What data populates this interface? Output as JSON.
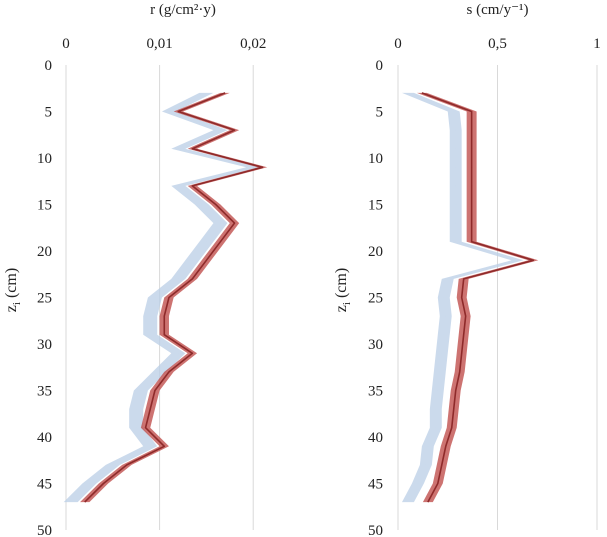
{
  "chart_data": [
    {
      "type": "line",
      "title": "r (g/cm²·y)",
      "ylabel": "z",
      "ylabel_sub": "i",
      "ylabel_unit": " (cm)",
      "xlim": [
        0,
        0.025
      ],
      "ylim": [
        0,
        50
      ],
      "y_inverted": true,
      "x_axis_position": "top",
      "x_ticks": [
        0,
        0.01,
        0.02
      ],
      "x_tick_labels": [
        "0",
        "0,01",
        "0,02"
      ],
      "y_ticks": [
        0,
        5,
        10,
        15,
        20,
        25,
        30,
        35,
        40,
        45,
        50
      ],
      "y_tick_labels": [
        "0",
        "5",
        "10",
        "15",
        "20",
        "25",
        "30",
        "35",
        "40",
        "45",
        "50"
      ],
      "grid": "vertical",
      "series": [
        {
          "color": "#b9cde6",
          "style": "band",
          "width": 0.0015,
          "points": [
            [
              0.015,
              3
            ],
            [
              0.011,
              5
            ],
            [
              0.0165,
              7
            ],
            [
              0.012,
              9
            ],
            [
              0.02,
              11
            ],
            [
              0.012,
              13
            ],
            [
              0.0145,
              15
            ],
            [
              0.0165,
              17
            ],
            [
              0.015,
              19
            ],
            [
              0.0135,
              21
            ],
            [
              0.012,
              23
            ],
            [
              0.0095,
              25
            ],
            [
              0.009,
              27
            ],
            [
              0.009,
              29
            ],
            [
              0.012,
              31
            ],
            [
              0.01,
              33
            ],
            [
              0.008,
              35
            ],
            [
              0.0075,
              37
            ],
            [
              0.0075,
              39
            ],
            [
              0.009,
              41
            ],
            [
              0.005,
              43
            ],
            [
              0.0025,
              45
            ],
            [
              0.0005,
              47
            ]
          ]
        },
        {
          "color": "#c0504d",
          "style": "band-line",
          "width": 0.001,
          "points": [
            [
              0.017,
              3
            ],
            [
              0.012,
              5
            ],
            [
              0.018,
              7
            ],
            [
              0.0135,
              9
            ],
            [
              0.021,
              11
            ],
            [
              0.0135,
              13
            ],
            [
              0.016,
              15
            ],
            [
              0.018,
              17
            ],
            [
              0.0165,
              19
            ],
            [
              0.015,
              21
            ],
            [
              0.0135,
              23
            ],
            [
              0.011,
              25
            ],
            [
              0.0105,
              27
            ],
            [
              0.0105,
              29
            ],
            [
              0.0135,
              31
            ],
            [
              0.011,
              33
            ],
            [
              0.0095,
              35
            ],
            [
              0.009,
              37
            ],
            [
              0.0085,
              39
            ],
            [
              0.0105,
              41
            ],
            [
              0.0065,
              43
            ],
            [
              0.004,
              45
            ],
            [
              0.002,
              47
            ]
          ]
        }
      ]
    },
    {
      "type": "line",
      "title": "s (cm/y⁻¹)",
      "ylabel": "z",
      "ylabel_sub": "i",
      "ylabel_unit": " (cm)",
      "xlim": [
        0,
        1
      ],
      "ylim": [
        0,
        50
      ],
      "y_inverted": true,
      "x_axis_position": "top",
      "x_ticks": [
        0,
        0.5,
        1
      ],
      "x_tick_labels": [
        "0",
        "0,5",
        "1"
      ],
      "y_ticks": [
        0,
        5,
        10,
        15,
        20,
        25,
        30,
        35,
        40,
        45,
        50
      ],
      "y_tick_labels": [
        "0",
        "5",
        "10",
        "15",
        "20",
        "25",
        "30",
        "35",
        "40",
        "45",
        "50"
      ],
      "grid": "vertical",
      "series": [
        {
          "color": "#b9cde6",
          "style": "band",
          "width": 0.06,
          "points": [
            [
              0.05,
              3
            ],
            [
              0.28,
              5
            ],
            [
              0.29,
              7
            ],
            [
              0.29,
              9
            ],
            [
              0.29,
              11
            ],
            [
              0.29,
              13
            ],
            [
              0.29,
              15
            ],
            [
              0.29,
              17
            ],
            [
              0.29,
              19
            ],
            [
              0.6,
              21
            ],
            [
              0.25,
              23
            ],
            [
              0.23,
              25
            ],
            [
              0.24,
              27
            ],
            [
              0.23,
              29
            ],
            [
              0.22,
              31
            ],
            [
              0.21,
              33
            ],
            [
              0.2,
              35
            ],
            [
              0.19,
              37
            ],
            [
              0.19,
              39
            ],
            [
              0.15,
              41
            ],
            [
              0.14,
              43
            ],
            [
              0.1,
              45
            ],
            [
              0.05,
              47
            ]
          ]
        },
        {
          "color": "#c0504d",
          "style": "band-line",
          "width": 0.05,
          "points": [
            [
              0.12,
              3
            ],
            [
              0.37,
              5
            ],
            [
              0.37,
              7
            ],
            [
              0.37,
              9
            ],
            [
              0.37,
              11
            ],
            [
              0.37,
              13
            ],
            [
              0.37,
              15
            ],
            [
              0.37,
              17
            ],
            [
              0.37,
              19
            ],
            [
              0.68,
              21
            ],
            [
              0.33,
              23
            ],
            [
              0.32,
              25
            ],
            [
              0.34,
              27
            ],
            [
              0.33,
              29
            ],
            [
              0.32,
              31
            ],
            [
              0.31,
              33
            ],
            [
              0.29,
              35
            ],
            [
              0.28,
              37
            ],
            [
              0.27,
              39
            ],
            [
              0.24,
              41
            ],
            [
              0.22,
              43
            ],
            [
              0.2,
              45
            ],
            [
              0.15,
              47
            ]
          ]
        }
      ]
    }
  ]
}
